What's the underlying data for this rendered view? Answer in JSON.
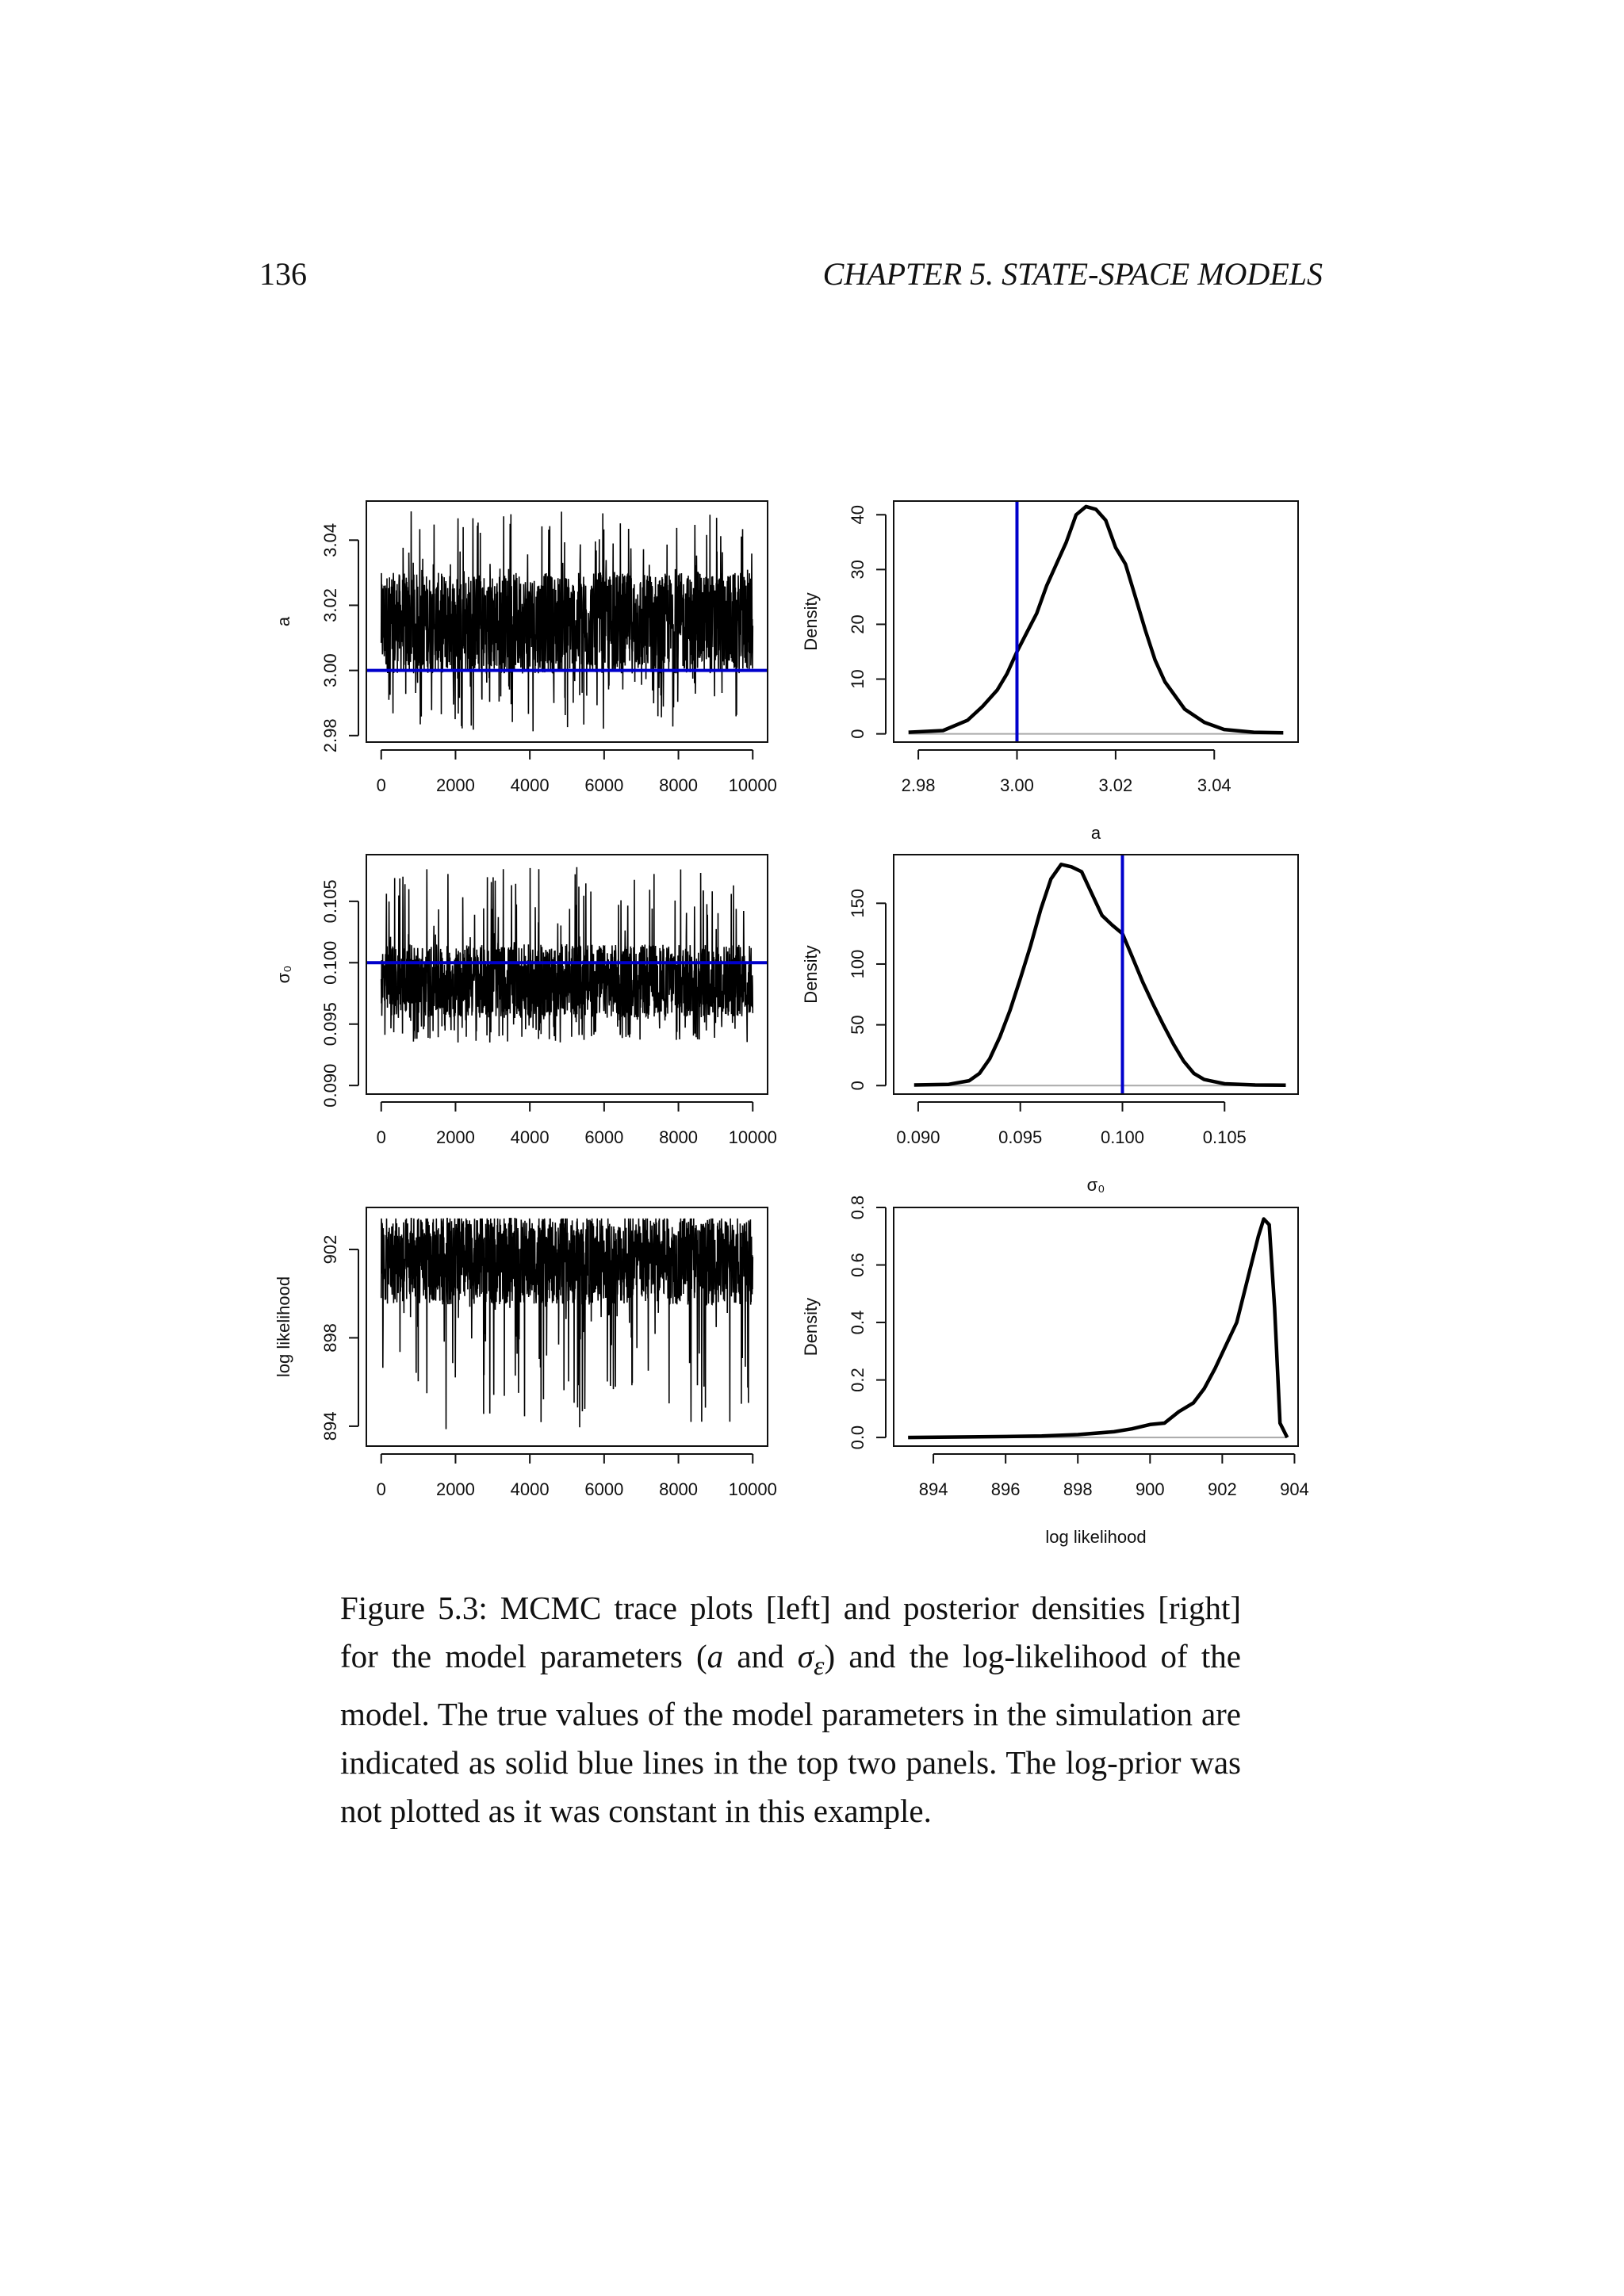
{
  "header": {
    "page_number": "136",
    "chapter": "CHAPTER 5.  STATE-SPACE MODELS"
  },
  "caption": {
    "label": "Figure 5.3:",
    "part1": " MCMC trace plots [left] and posterior densities [right] for the model parameters (",
    "sym_a": "a",
    "part2": " and ",
    "sym_sigma": "σ",
    "sym_sigma_sub": "ε",
    "part3": ") and the log-likelihood of the model. The true values of the model parameters in the simulation are indicated as solid blue lines in the top two panels. The log-prior was not plotted as it was constant in this example."
  },
  "colors": {
    "trace": "#000000",
    "true_value": "#0000cc",
    "baseline": "#aaaaaa",
    "axis": "#111111"
  },
  "chart_data": [
    {
      "type": "line",
      "id": "trace-a",
      "ylabel": "a",
      "xlabel": "",
      "xlim": [
        -400,
        10400
      ],
      "ylim": [
        2.978,
        3.052
      ],
      "xticks": [
        0,
        2000,
        4000,
        6000,
        8000,
        10000
      ],
      "xtick_labels": [
        "0",
        "2000",
        "4000",
        "6000",
        "8000",
        "10000"
      ],
      "yticks": [
        2.98,
        3.0,
        3.02,
        3.04
      ],
      "ytick_labels": [
        "2.98",
        "3.00",
        "3.02",
        "3.04"
      ],
      "iterations": 10000,
      "trace_summary": {
        "typical_range": [
          2.999,
          3.03
        ],
        "min": 2.981,
        "max": 3.049
      },
      "reference_line": {
        "orientation": "horizontal",
        "value": 3.0
      }
    },
    {
      "type": "line",
      "id": "density-a",
      "ylabel": "Density",
      "xlabel": "a",
      "xlim": [
        2.975,
        3.057
      ],
      "ylim": [
        -1.5,
        42.5
      ],
      "xticks": [
        2.98,
        3.0,
        3.02,
        3.04
      ],
      "xtick_labels": [
        "2.98",
        "3.00",
        "3.02",
        "3.04"
      ],
      "yticks": [
        0,
        10,
        20,
        30,
        40
      ],
      "ytick_labels": [
        "0",
        "10",
        "20",
        "30",
        "40"
      ],
      "x": [
        2.978,
        2.985,
        2.99,
        2.993,
        2.996,
        2.998,
        3.0,
        3.002,
        3.004,
        3.006,
        3.008,
        3.01,
        3.012,
        3.014,
        3.016,
        3.018,
        3.02,
        3.022,
        3.024,
        3.026,
        3.028,
        3.03,
        3.034,
        3.038,
        3.042,
        3.048,
        3.054
      ],
      "y": [
        0.3,
        0.6,
        2.5,
        5,
        8,
        11,
        15,
        18.5,
        22,
        27,
        31,
        35,
        40,
        41.5,
        41,
        39,
        34,
        31,
        25,
        19,
        13.5,
        9.5,
        4.5,
        2.1,
        0.8,
        0.3,
        0.2
      ],
      "reference_line": {
        "orientation": "vertical",
        "value": 3.0
      }
    },
    {
      "type": "line",
      "id": "trace-sigma",
      "ylabel": "σ₀",
      "xlabel": "",
      "xlim": [
        -400,
        10400
      ],
      "ylim": [
        0.0893,
        0.1088
      ],
      "xticks": [
        0,
        2000,
        4000,
        6000,
        8000,
        10000
      ],
      "xtick_labels": [
        "0",
        "2000",
        "4000",
        "6000",
        "8000",
        "10000"
      ],
      "yticks": [
        0.09,
        0.095,
        0.1,
        0.105
      ],
      "ytick_labels": [
        "0.090",
        "0.095",
        "0.100",
        "0.105"
      ],
      "iterations": 10000,
      "trace_summary": {
        "typical_range": [
          0.0955,
          0.1015
        ],
        "min": 0.0935,
        "max": 0.1078
      },
      "reference_line": {
        "orientation": "horizontal",
        "value": 0.1
      }
    },
    {
      "type": "line",
      "id": "density-sigma",
      "ylabel": "Density",
      "xlabel": "σ₀",
      "xlim": [
        0.0888,
        0.1086
      ],
      "ylim": [
        -7,
        190
      ],
      "xticks": [
        0.09,
        0.095,
        0.1,
        0.105
      ],
      "xtick_labels": [
        "0.090",
        "0.095",
        "0.100",
        "0.105"
      ],
      "yticks": [
        0,
        50,
        100,
        150
      ],
      "ytick_labels": [
        "0",
        "50",
        "100",
        "150"
      ],
      "x": [
        0.0898,
        0.0915,
        0.0925,
        0.093,
        0.0935,
        0.094,
        0.0945,
        0.095,
        0.0955,
        0.096,
        0.0965,
        0.097,
        0.0975,
        0.098,
        0.0985,
        0.099,
        0.0995,
        0.1,
        0.1005,
        0.101,
        0.1015,
        0.102,
        0.1025,
        0.103,
        0.1035,
        0.104,
        0.105,
        0.1065,
        0.108
      ],
      "y": [
        0.5,
        1,
        4,
        10,
        22,
        40,
        62,
        88,
        115,
        145,
        170,
        182,
        180,
        176,
        158,
        140,
        132,
        125,
        105,
        85,
        67,
        50,
        34,
        20,
        10,
        5,
        1.5,
        0.5,
        0.3
      ],
      "reference_line": {
        "orientation": "vertical",
        "value": 0.1
      }
    },
    {
      "type": "line",
      "id": "trace-loglik",
      "ylabel": "log likelihood",
      "xlabel": "",
      "xlim": [
        -400,
        10400
      ],
      "ylim": [
        893.1,
        903.9
      ],
      "xticks": [
        0,
        2000,
        4000,
        6000,
        8000,
        10000
      ],
      "xtick_labels": [
        "0",
        "2000",
        "4000",
        "6000",
        "8000",
        "10000"
      ],
      "yticks": [
        894,
        898,
        902
      ],
      "ytick_labels": [
        "894",
        "898",
        "902"
      ],
      "iterations": 10000,
      "trace_summary": {
        "typical_range": [
          899.5,
          903.4
        ],
        "min": 893.8,
        "max": 903.4
      }
    },
    {
      "type": "line",
      "id": "density-loglik",
      "ylabel": "Density",
      "xlabel": "log likelihood",
      "xlim": [
        892.9,
        904.1
      ],
      "ylim": [
        -0.03,
        0.8
      ],
      "xticks": [
        894,
        896,
        898,
        900,
        902,
        904
      ],
      "xtick_labels": [
        "894",
        "896",
        "898",
        "900",
        "902",
        "904"
      ],
      "yticks": [
        0.0,
        0.2,
        0.4,
        0.6,
        0.8
      ],
      "ytick_labels": [
        "0.0",
        "0.2",
        "0.4",
        "0.6",
        "0.8"
      ],
      "x": [
        893.3,
        895.0,
        897.0,
        898.0,
        899.0,
        899.5,
        900.0,
        900.4,
        900.8,
        901.2,
        901.5,
        901.8,
        902.1,
        902.4,
        902.6,
        902.8,
        903.0,
        903.15,
        903.3,
        903.45,
        903.6,
        903.8
      ],
      "y": [
        0.0,
        0.002,
        0.005,
        0.01,
        0.02,
        0.03,
        0.045,
        0.05,
        0.09,
        0.12,
        0.17,
        0.24,
        0.32,
        0.4,
        0.5,
        0.6,
        0.7,
        0.76,
        0.74,
        0.45,
        0.05,
        0.0
      ]
    }
  ]
}
